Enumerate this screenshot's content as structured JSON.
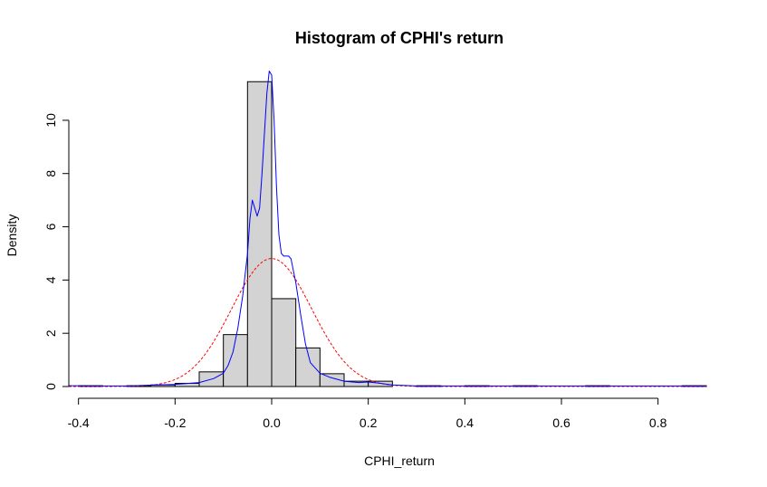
{
  "chart_data": {
    "type": "bar",
    "title": "Histogram of CPHI's return",
    "xlabel": "CPHI_return",
    "ylabel": "Density",
    "xlim": [
      -0.42,
      0.9
    ],
    "ylim": [
      0,
      11.9
    ],
    "x_ticks": [
      -0.4,
      -0.2,
      0.0,
      0.2,
      0.4,
      0.6,
      0.8
    ],
    "x_tick_labels": [
      "-0.4",
      "-0.2",
      "0.0",
      "0.2",
      "0.4",
      "0.6",
      "0.8"
    ],
    "y_ticks": [
      0,
      2,
      4,
      6,
      8,
      10
    ],
    "y_tick_labels": [
      "0",
      "2",
      "4",
      "6",
      "8",
      "10"
    ],
    "bin_width": 0.05,
    "bars": [
      {
        "x0": -0.4,
        "x1": -0.35,
        "density": 0.03
      },
      {
        "x0": -0.35,
        "x1": -0.3,
        "density": 0.0
      },
      {
        "x0": -0.3,
        "x1": -0.25,
        "density": 0.03
      },
      {
        "x0": -0.25,
        "x1": -0.2,
        "density": 0.06
      },
      {
        "x0": -0.2,
        "x1": -0.15,
        "density": 0.12
      },
      {
        "x0": -0.15,
        "x1": -0.1,
        "density": 0.55
      },
      {
        "x0": -0.1,
        "x1": -0.05,
        "density": 1.95
      },
      {
        "x0": -0.05,
        "x1": 0.0,
        "density": 11.45
      },
      {
        "x0": 0.0,
        "x1": 0.05,
        "density": 3.3
      },
      {
        "x0": 0.05,
        "x1": 0.1,
        "density": 1.45
      },
      {
        "x0": 0.1,
        "x1": 0.15,
        "density": 0.48
      },
      {
        "x0": 0.15,
        "x1": 0.2,
        "density": 0.2
      },
      {
        "x0": 0.2,
        "x1": 0.25,
        "density": 0.2
      },
      {
        "x0": 0.25,
        "x1": 0.3,
        "density": 0.0
      },
      {
        "x0": 0.3,
        "x1": 0.35,
        "density": 0.03
      },
      {
        "x0": 0.35,
        "x1": 0.4,
        "density": 0.0
      },
      {
        "x0": 0.4,
        "x1": 0.45,
        "density": 0.03
      },
      {
        "x0": 0.45,
        "x1": 0.5,
        "density": 0.0
      },
      {
        "x0": 0.5,
        "x1": 0.55,
        "density": 0.03
      },
      {
        "x0": 0.55,
        "x1": 0.6,
        "density": 0.0
      },
      {
        "x0": 0.6,
        "x1": 0.65,
        "density": 0.0
      },
      {
        "x0": 0.65,
        "x1": 0.7,
        "density": 0.03
      },
      {
        "x0": 0.7,
        "x1": 0.75,
        "density": 0.0
      },
      {
        "x0": 0.75,
        "x1": 0.8,
        "density": 0.0
      },
      {
        "x0": 0.8,
        "x1": 0.85,
        "density": 0.0
      },
      {
        "x0": 0.85,
        "x1": 0.9,
        "density": 0.03
      }
    ],
    "kde_points": [
      [
        -0.42,
        0.03
      ],
      [
        -0.35,
        0.02
      ],
      [
        -0.3,
        0.02
      ],
      [
        -0.25,
        0.05
      ],
      [
        -0.2,
        0.08
      ],
      [
        -0.15,
        0.15
      ],
      [
        -0.12,
        0.3
      ],
      [
        -0.1,
        0.5
      ],
      [
        -0.09,
        0.8
      ],
      [
        -0.08,
        1.3
      ],
      [
        -0.07,
        2.2
      ],
      [
        -0.06,
        3.4
      ],
      [
        -0.05,
        5.0
      ],
      [
        -0.045,
        6.3
      ],
      [
        -0.04,
        7.0
      ],
      [
        -0.035,
        6.7
      ],
      [
        -0.03,
        6.4
      ],
      [
        -0.025,
        6.7
      ],
      [
        -0.02,
        8.0
      ],
      [
        -0.015,
        9.5
      ],
      [
        -0.01,
        11.0
      ],
      [
        -0.005,
        11.85
      ],
      [
        0.0,
        11.7
      ],
      [
        0.005,
        10.0
      ],
      [
        0.01,
        7.5
      ],
      [
        0.015,
        5.7
      ],
      [
        0.02,
        5.0
      ],
      [
        0.025,
        4.9
      ],
      [
        0.03,
        4.9
      ],
      [
        0.035,
        4.9
      ],
      [
        0.04,
        4.8
      ],
      [
        0.05,
        3.9
      ],
      [
        0.06,
        2.7
      ],
      [
        0.07,
        1.6
      ],
      [
        0.08,
        0.9
      ],
      [
        0.1,
        0.5
      ],
      [
        0.12,
        0.35
      ],
      [
        0.15,
        0.2
      ],
      [
        0.18,
        0.15
      ],
      [
        0.2,
        0.17
      ],
      [
        0.22,
        0.13
      ],
      [
        0.25,
        0.06
      ],
      [
        0.3,
        0.02
      ],
      [
        0.4,
        0.02
      ],
      [
        0.5,
        0.02
      ],
      [
        0.6,
        0.02
      ],
      [
        0.7,
        0.02
      ],
      [
        0.8,
        0.02
      ],
      [
        0.9,
        0.02
      ]
    ],
    "normal_curve": {
      "mean": 0.0,
      "sd": 0.083
    },
    "colors": {
      "bar_fill": "#d3d3d3",
      "bar_stroke": "#000000",
      "kde_line": "#0000ff",
      "normal_line": "#ff0000"
    }
  }
}
